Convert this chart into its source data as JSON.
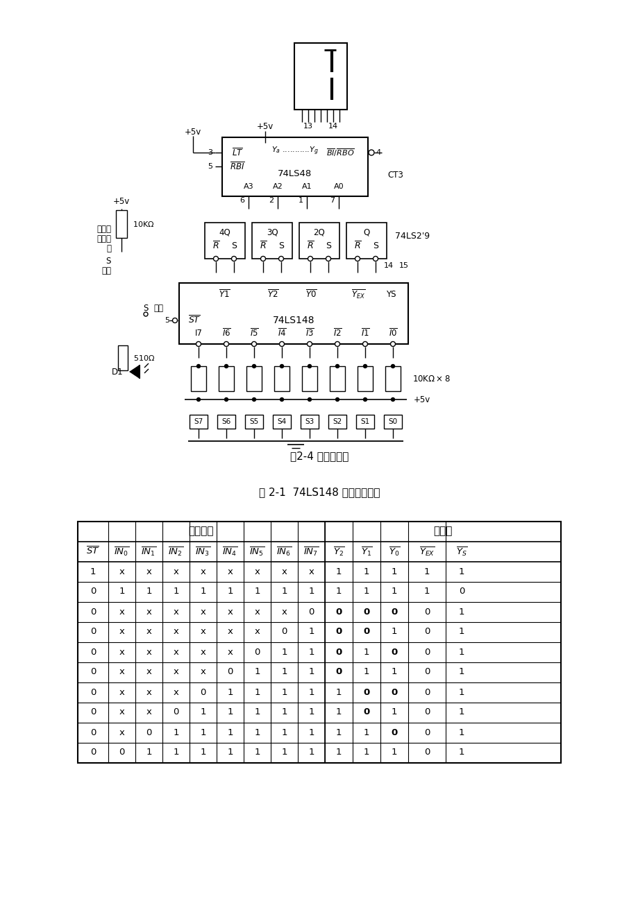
{
  "page_bg": "#ffffff",
  "fig_caption": "图2-4 抢答器电路",
  "table_caption": "表 2-1  74LS148 的功能真值表",
  "table_data": [
    [
      "1",
      "x",
      "x",
      "x",
      "x",
      "x",
      "x",
      "x",
      "x",
      "1",
      "1",
      "1",
      "1",
      "1"
    ],
    [
      "0",
      "1",
      "1",
      "1",
      "1",
      "1",
      "1",
      "1",
      "1",
      "1",
      "1",
      "1",
      "1",
      "0"
    ],
    [
      "0",
      "x",
      "x",
      "x",
      "x",
      "x",
      "x",
      "x",
      "0",
      "0",
      "0",
      "0",
      "0",
      "1"
    ],
    [
      "0",
      "x",
      "x",
      "x",
      "x",
      "x",
      "x",
      "0",
      "1",
      "0",
      "0",
      "1",
      "0",
      "1"
    ],
    [
      "0",
      "x",
      "x",
      "x",
      "x",
      "x",
      "0",
      "1",
      "1",
      "0",
      "1",
      "0",
      "0",
      "1"
    ],
    [
      "0",
      "x",
      "x",
      "x",
      "x",
      "0",
      "1",
      "1",
      "1",
      "0",
      "1",
      "1",
      "0",
      "1"
    ],
    [
      "0",
      "x",
      "x",
      "x",
      "0",
      "1",
      "1",
      "1",
      "1",
      "1",
      "0",
      "0",
      "0",
      "1"
    ],
    [
      "0",
      "x",
      "x",
      "0",
      "1",
      "1",
      "1",
      "1",
      "1",
      "1",
      "0",
      "1",
      "0",
      "1"
    ],
    [
      "0",
      "x",
      "0",
      "1",
      "1",
      "1",
      "1",
      "1",
      "1",
      "1",
      "1",
      "0",
      "0",
      "1"
    ],
    [
      "0",
      "0",
      "1",
      "1",
      "1",
      "1",
      "1",
      "1",
      "1",
      "1",
      "1",
      "1",
      "0",
      "1"
    ]
  ]
}
